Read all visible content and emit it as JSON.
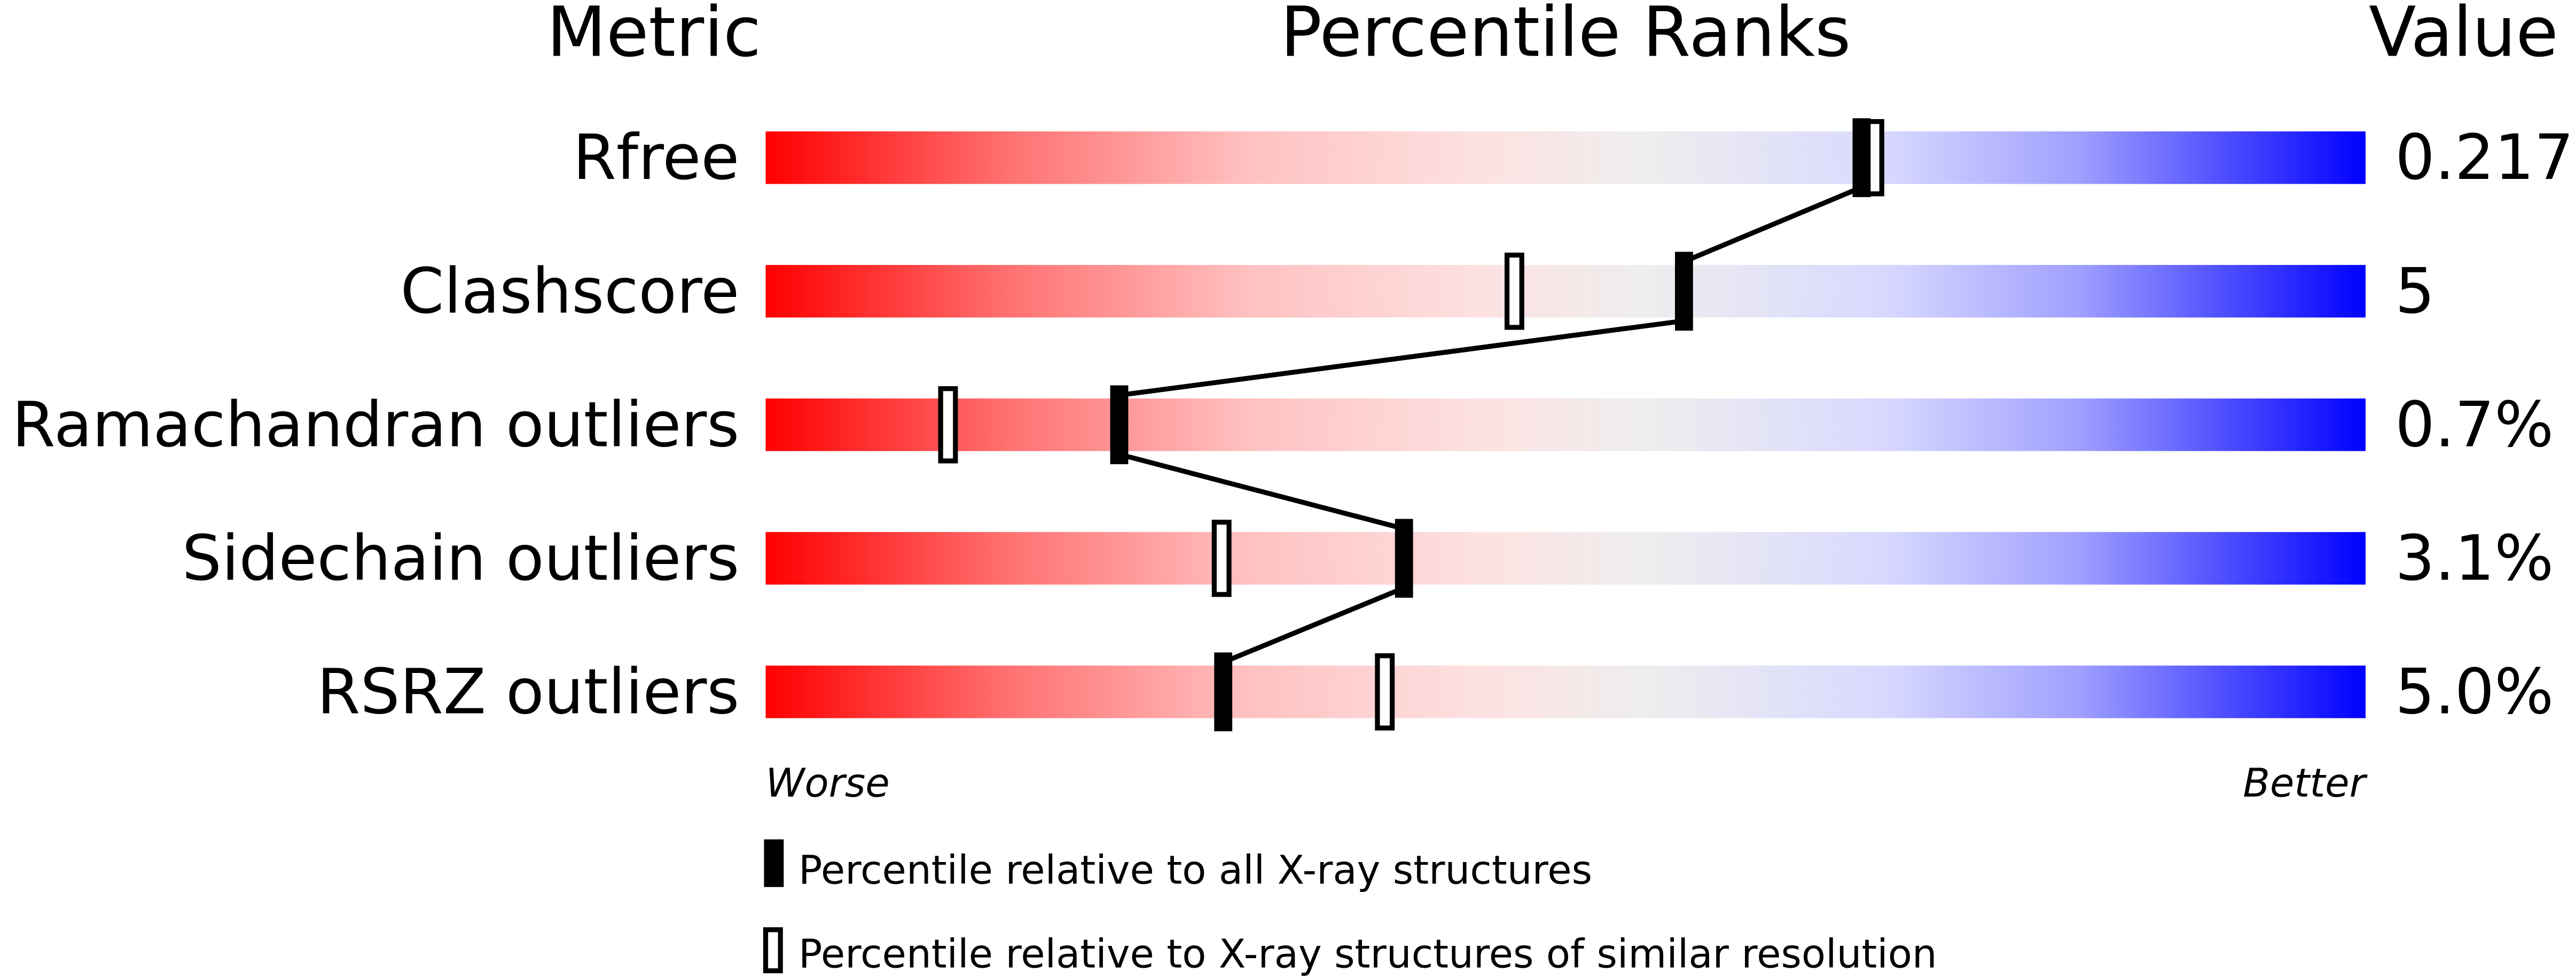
{
  "chart_data": {
    "type": "percentile-ranks",
    "headers": {
      "metric": "Metric",
      "ranks": "Percentile Ranks",
      "value": "Value"
    },
    "xlim": [
      0,
      100
    ],
    "colors": {
      "worse": "#ff0000",
      "neutral": "#eeeeee",
      "better": "#0000ff"
    },
    "rows": [
      {
        "metric": "Rfree",
        "value": "0.217",
        "percentile_all": 68.5,
        "percentile_similar": 69.3
      },
      {
        "metric": "Clashscore",
        "value": "5",
        "percentile_all": 57.4,
        "percentile_similar": 46.8
      },
      {
        "metric": "Ramachandran outliers",
        "value": "0.7%",
        "percentile_all": 22.1,
        "percentile_similar": 11.4
      },
      {
        "metric": "Sidechain outliers",
        "value": "3.1%",
        "percentile_all": 39.9,
        "percentile_similar": 28.5
      },
      {
        "metric": "RSRZ outliers",
        "value": "5.0%",
        "percentile_all": 28.6,
        "percentile_similar": 38.7
      }
    ],
    "axis_labels": {
      "left": "Worse",
      "right": "Better"
    },
    "legend": [
      {
        "marker": "filled",
        "label": "Percentile relative to all X-ray structures"
      },
      {
        "marker": "open",
        "label": "Percentile relative to X-ray structures of similar resolution"
      }
    ]
  }
}
